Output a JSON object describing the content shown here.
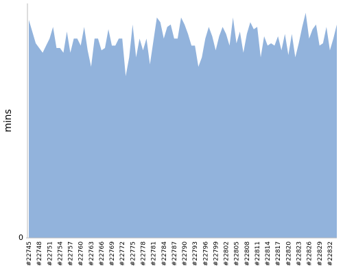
{
  "chart_data": {
    "type": "area",
    "y_label": "mins",
    "color": "#92b3dc",
    "categories": [
      "#22745",
      null,
      null,
      "#22748",
      null,
      null,
      "#22751",
      null,
      null,
      "#22754",
      null,
      null,
      "#22757",
      null,
      null,
      "#22760",
      null,
      null,
      "#22763",
      null,
      null,
      "#22766",
      null,
      null,
      "#22769",
      null,
      null,
      "#22772",
      null,
      null,
      "#22775",
      null,
      null,
      "#22778",
      null,
      null,
      "#22781",
      null,
      null,
      "#22784",
      null,
      null,
      "#22787",
      null,
      null,
      "#22790",
      null,
      null,
      "#22793",
      null,
      null,
      "#22796",
      null,
      null,
      "#22799",
      null,
      null,
      "#22802",
      null,
      null,
      "#22805",
      null,
      null,
      "#22808",
      null,
      null,
      "#22811",
      null,
      null,
      "#22814",
      null,
      null,
      "#22817",
      null,
      null,
      "#22820",
      null,
      null,
      "#22823",
      null,
      null,
      "#22826",
      null,
      null,
      "#22829",
      null,
      null,
      "#22832",
      null,
      null
    ],
    "values": [
      93,
      88,
      83,
      81,
      79,
      82,
      85,
      90,
      81,
      81,
      79,
      88,
      79,
      85,
      85,
      82,
      90,
      80,
      73,
      85,
      85,
      80,
      81,
      89,
      82,
      82,
      85,
      85,
      69,
      77,
      91,
      77,
      85,
      80,
      85,
      74,
      84,
      94,
      92,
      85,
      90,
      91,
      85,
      85,
      94,
      91,
      87,
      82,
      82,
      73,
      77,
      85,
      90,
      86,
      80,
      86,
      90,
      87,
      82,
      94,
      83,
      88,
      79,
      87,
      92,
      89,
      90,
      77,
      86,
      82,
      83,
      82,
      86,
      80,
      87,
      78,
      87,
      77,
      83,
      90,
      96,
      85,
      89,
      91,
      82,
      83,
      90,
      80,
      85,
      91
    ],
    "ylim": [
      0,
      100
    ],
    "yticks": [
      0
    ]
  }
}
